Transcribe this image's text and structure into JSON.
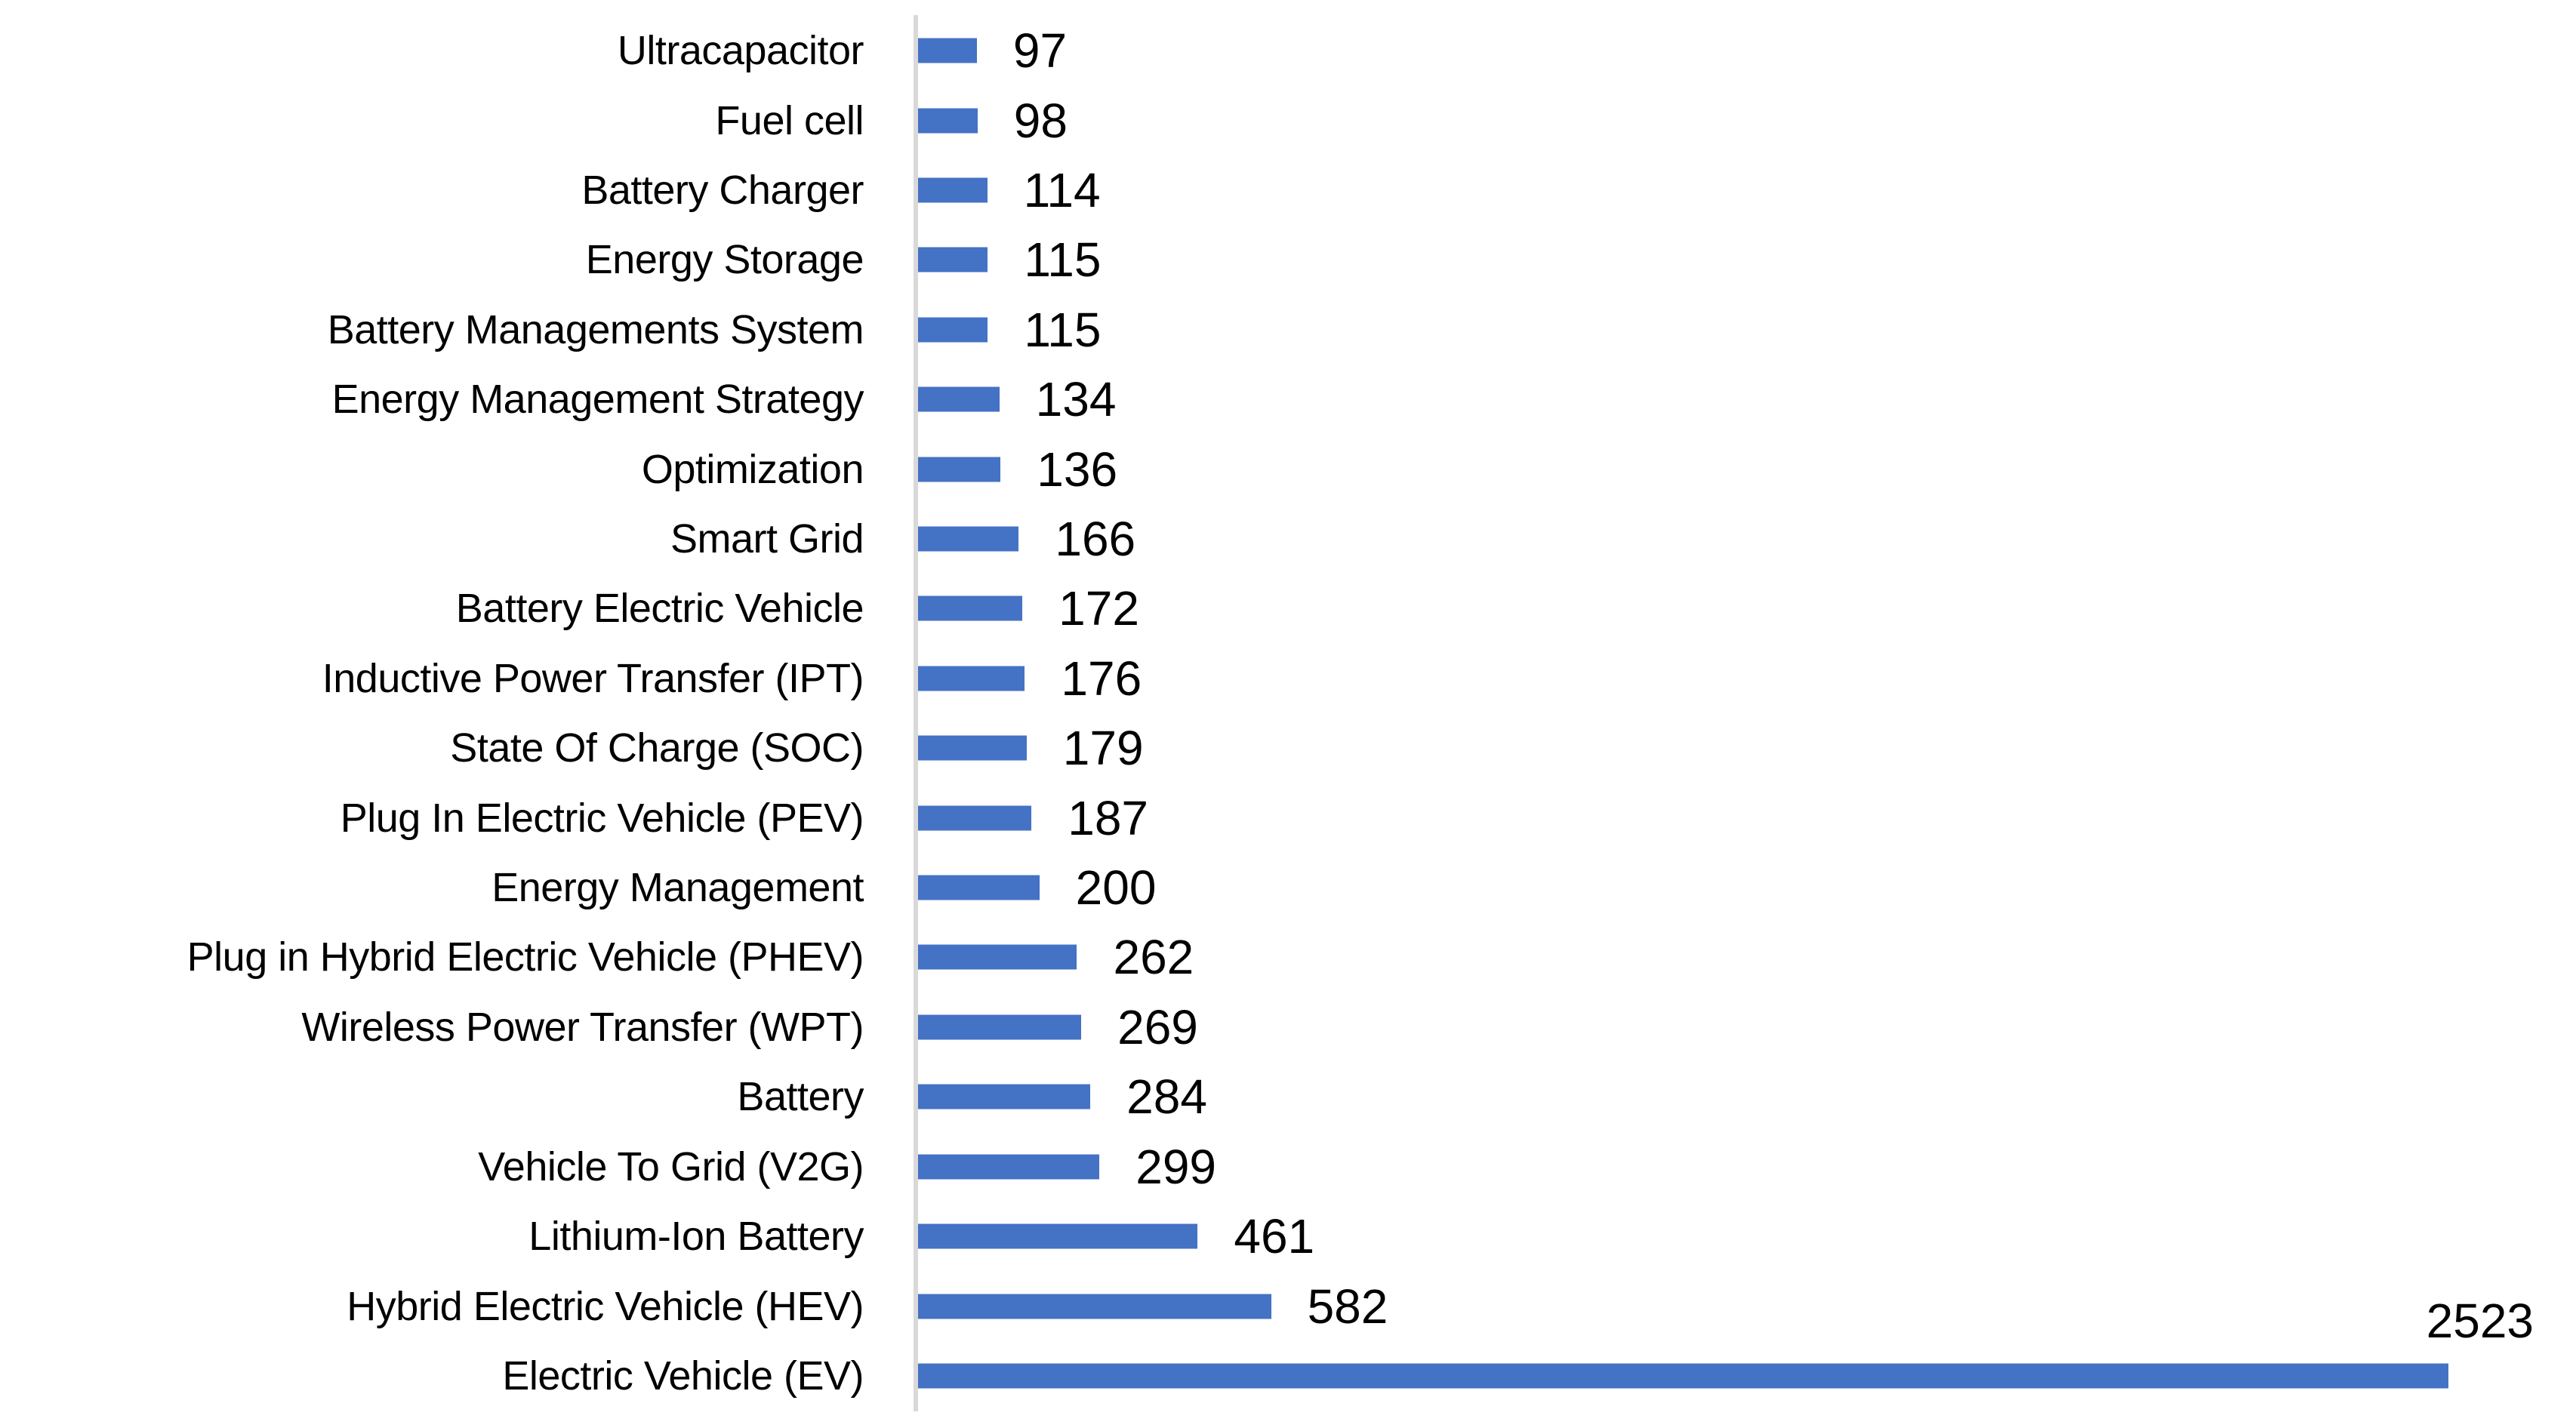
{
  "chart_data": {
    "type": "bar",
    "orientation": "horizontal",
    "order": "as displayed, top to bottom",
    "categories": [
      "Ultracapacitor",
      "Fuel cell",
      "Battery Charger",
      "Energy Storage",
      "Battery Managements System",
      "Energy Management Strategy",
      "Optimization",
      "Smart Grid",
      "Battery Electric Vehicle",
      "Inductive Power Transfer (IPT)",
      "State Of Charge (SOC)",
      "Plug In Electric Vehicle (PEV)",
      "Energy Management",
      "Plug in Hybrid Electric Vehicle (PHEV)",
      "Wireless Power Transfer (WPT)",
      "Battery",
      "Vehicle To Grid (V2G)",
      "Lithium-Ion Battery",
      "Hybrid Electric Vehicle (HEV)",
      "Electric Vehicle (EV)"
    ],
    "values": [
      97,
      98,
      114,
      115,
      115,
      134,
      136,
      166,
      172,
      176,
      179,
      187,
      200,
      262,
      269,
      284,
      299,
      461,
      582,
      2523
    ],
    "data_labels_shown": true,
    "data_label_position": "outside-end",
    "max_value_label_position": "above-bar-end",
    "bar_color": "#4472C4",
    "axis_line_color": "#D9D9D9",
    "text_color": "#000000",
    "legend": false,
    "gridlines": false,
    "x_axis_tick_labels": false,
    "xlim": [
      0,
      2736
    ]
  }
}
